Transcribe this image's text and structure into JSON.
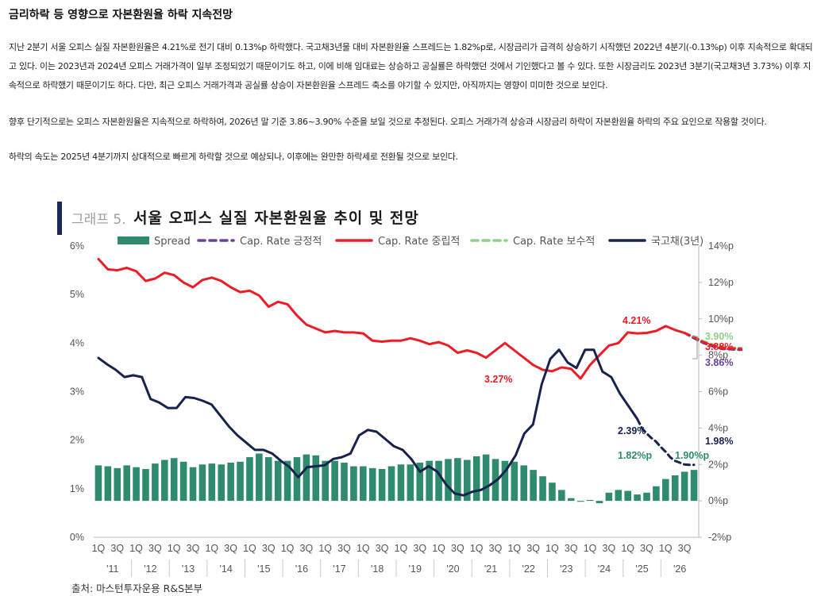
{
  "article": {
    "headline": "금리하락 등 영향으로 자본환원율 하락 지속전망",
    "paragraphs": [
      "지난 2분기 서울 오피스 실질 자본환원율은 4.21%로 전기 대비 0.13%p 하락했다.  국고채3년물 대비 자본환원율 스프레드는 1.82%p로, 시장금리가 급격히 상승하기 시작했던 2022년 4분기(-0.13%p) 이후 지속적으로 확대되고 있다. 이는 2023년과 2024년 오피스 거래가격이 일부 조정되었기 때문이기도 하고,  이에 비해 임대료는 상승하고 공실률은 하락했던 것에서 기인했다고 볼 수 있다.  또한 시장금리도 2023년 3분기(국고채3년 3.73%)  이후 지속적으로 하락했기 때문이기도 하다. 다만, 최근 오피스 거래가격과 공실률 상승이 자본환원율 스프레드 축소를 야기할 수 있지만,  아직까지는 영향이 미미한 것으로 보인다.",
      "향후 단기적으로는 오피스 자본환원율은 지속적으로 하락하여, 2026년 말 기준 3.86~3.90%  수준을 보일 것으로 추정된다.  오피스 거래가격 상승과 시장금리 하락이 자본환원율 하락의 주요 요인으로 작용할 것이다.",
      "하락의 속도는 2025년 4분기까지 상대적으로 빠르게 하락할 것으로 예상되나, 이후에는 완만한 하락세로 전환될 것으로 보인다."
    ]
  },
  "figure": {
    "prefix": "그래프 5.",
    "title": "서울 오피스 실질 자본환원율 추이 및 전망",
    "source": "출처:   마스턴투자운용 R&S본부"
  },
  "colors": {
    "spread": "#2e8b6e",
    "cap_positive": "#6a3fa0",
    "cap_neutral": "#ee1c25",
    "cap_conservative": "#8fd18a",
    "bond": "#17224d",
    "title_bar": "#1f2b57"
  },
  "chart_data": {
    "type": "bar+line",
    "legend": [
      "Spread",
      "Cap. Rate 긍정적",
      "Cap. Rate 중립적",
      "Cap. Rate 보수적",
      "국고채(3년)"
    ],
    "legend_position": "top",
    "left_axis": {
      "range": [
        0,
        6
      ],
      "ticks": [
        "0%",
        "1%",
        "2%",
        "3%",
        "4%",
        "5%",
        "6%"
      ]
    },
    "right_axis": {
      "range": [
        -2,
        14
      ],
      "ticks": [
        "-2%p",
        "0%p",
        "2%p",
        "4%p",
        "6%p",
        "8%p",
        "10%p",
        "12%p",
        "14%p"
      ]
    },
    "quarter_labels": [
      "1Q",
      "3Q"
    ],
    "years": [
      "'11",
      "'12",
      "'13",
      "'14",
      "'15",
      "'16",
      "'17",
      "'18",
      "'19",
      "'20",
      "'21",
      "'22",
      "'23",
      "'24",
      "'25",
      "'26"
    ],
    "cap_rate_neutral": [
      5.73,
      5.52,
      5.5,
      5.55,
      5.48,
      5.28,
      5.33,
      5.45,
      5.4,
      5.25,
      5.15,
      5.3,
      5.35,
      5.28,
      5.15,
      5.05,
      5.08,
      4.98,
      4.75,
      4.85,
      4.8,
      4.57,
      4.38,
      4.3,
      4.22,
      4.25,
      4.22,
      4.22,
      4.2,
      4.05,
      4.03,
      4.05,
      4.05,
      4.1,
      4.05,
      3.98,
      4.02,
      3.95,
      3.8,
      3.85,
      3.8,
      3.7,
      3.85,
      4.0,
      3.85,
      3.7,
      3.55,
      3.45,
      3.42,
      3.5,
      3.47,
      3.27,
      3.55,
      3.75,
      3.95,
      4.0,
      4.22,
      4.2,
      4.21,
      4.25,
      4.35,
      4.27,
      4.21
    ],
    "cap_rate_forecast_positive": [
      4.21,
      4.1,
      4.0,
      3.93,
      3.88,
      3.87,
      3.86
    ],
    "cap_rate_forecast_neutral": [
      4.21,
      4.12,
      4.02,
      3.95,
      3.9,
      3.89,
      3.88
    ],
    "cap_rate_forecast_conservative": [
      4.21,
      4.14,
      4.04,
      3.97,
      3.93,
      3.91,
      3.9
    ],
    "bond_3y": [
      7.85,
      7.5,
      7.2,
      6.8,
      6.9,
      6.8,
      5.6,
      5.4,
      5.1,
      5.1,
      5.7,
      5.65,
      5.5,
      5.3,
      4.7,
      4.1,
      3.6,
      3.2,
      2.8,
      2.8,
      2.6,
      2.2,
      1.85,
      1.3,
      1.85,
      1.9,
      1.95,
      2.3,
      2.4,
      2.6,
      3.6,
      3.9,
      3.8,
      3.4,
      3.0,
      2.8,
      2.3,
      1.6,
      1.9,
      1.6,
      0.9,
      0.4,
      0.3,
      0.5,
      0.6,
      0.85,
      1.2,
      1.75,
      2.5,
      3.7,
      4.2,
      6.4,
      7.8,
      8.3,
      7.6,
      7.3,
      8.3,
      8.3,
      7.1,
      6.8,
      5.9,
      5.2,
      4.5
    ],
    "bond_3y_forecast": [
      4.5,
      3.98,
      3.7,
      3.45,
      3.25,
      2.95,
      2.7,
      2.39,
      2.2,
      2.1,
      2.0,
      1.98,
      1.98
    ],
    "spread_bars": [
      1.95,
      1.9,
      1.8,
      1.95,
      1.85,
      1.75,
      2.05,
      2.25,
      2.35,
      2.15,
      1.85,
      2.0,
      2.05,
      2.0,
      2.1,
      2.15,
      2.4,
      2.6,
      2.4,
      2.2,
      2.2,
      2.4,
      2.55,
      2.5,
      2.2,
      2.2,
      2.1,
      1.9,
      1.9,
      1.8,
      1.75,
      1.9,
      2.0,
      2.0,
      2.1,
      2.2,
      2.2,
      2.3,
      2.35,
      2.25,
      2.45,
      2.55,
      2.3,
      2.2,
      2.15,
      1.95,
      1.7,
      1.35,
      1.0,
      0.6,
      0.15,
      -0.05,
      0.05,
      -0.13,
      0.45,
      0.6,
      0.55,
      0.35,
      0.45,
      0.8,
      1.2,
      1.4,
      1.6,
      1.7,
      1.78,
      1.8,
      1.82,
      1.85,
      1.9,
      1.9,
      1.9
    ],
    "annotations": [
      {
        "text": "4.21%",
        "series": "cap_neutral"
      },
      {
        "text": "3.27%",
        "series": "cap_neutral"
      },
      {
        "text": "3.90%",
        "series": "cap_conservative"
      },
      {
        "text": "3.88%",
        "series": "cap_neutral"
      },
      {
        "text": "3.86%",
        "series": "cap_positive"
      },
      {
        "text": "2.39%",
        "series": "bond"
      },
      {
        "text": "1.98%",
        "series": "bond"
      },
      {
        "text": "1.82%p",
        "series": "spread"
      },
      {
        "text": "1.90%p",
        "series": "spread"
      }
    ]
  }
}
